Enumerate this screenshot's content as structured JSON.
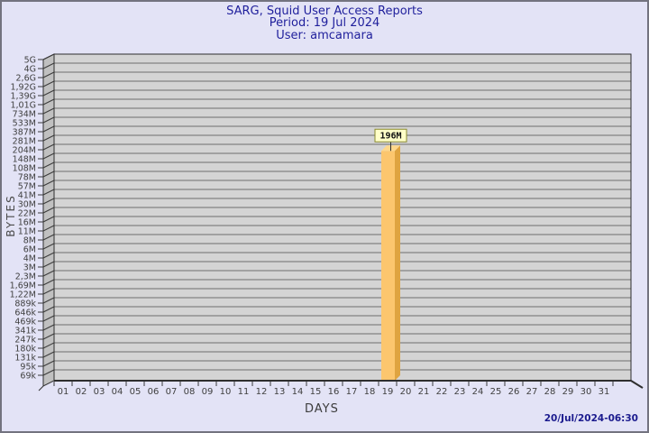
{
  "header": {
    "title": "SARG, Squid User Access Reports",
    "period": "Period: 19 Jul 2024",
    "user": "User: amcamara"
  },
  "footer": {
    "timestamp": "20/Jul/2024-06:30"
  },
  "window_colors": {
    "background": "#e3e3f6",
    "border": "#73737f",
    "title_text": "#1f1f9c",
    "timestamp_text": "#1b1b8e"
  },
  "chart_data": {
    "type": "bar",
    "title": "SARG, Squid User Access Reports",
    "period": "19 Jul 2024",
    "user": "amcamara",
    "xlabel": "DAYS",
    "ylabel": "BYTES",
    "y_scale": "log",
    "grid": true,
    "legend": null,
    "x_categories": [
      "01",
      "02",
      "03",
      "04",
      "05",
      "06",
      "07",
      "08",
      "09",
      "10",
      "11",
      "12",
      "13",
      "14",
      "15",
      "16",
      "17",
      "18",
      "19",
      "20",
      "21",
      "22",
      "23",
      "24",
      "25",
      "26",
      "27",
      "28",
      "29",
      "30",
      "31"
    ],
    "y_tick_labels": [
      "5G",
      "4G",
      "2,6G",
      "1,92G",
      "1,39G",
      "1,01G",
      "734M",
      "533M",
      "387M",
      "281M",
      "204M",
      "148M",
      "108M",
      "78M",
      "57M",
      "41M",
      "30M",
      "22M",
      "16M",
      "11M",
      "8M",
      "6M",
      "4M",
      "3M",
      "2,3M",
      "1,69M",
      "1,22M",
      "889k",
      "646k",
      "469k",
      "341k",
      "247k",
      "180k",
      "131k",
      "95k",
      "69k"
    ],
    "bars": [
      {
        "day": "19",
        "value_label": "196M"
      }
    ],
    "bar_colors": {
      "front": "#fcc66e",
      "side": "#dfa440",
      "top": "#ffd88c"
    },
    "annotation_box": {
      "bg": "#ffffc8",
      "border": "#8b8b2f",
      "text": "#101010"
    },
    "plot": {
      "bg": "#d4d4d4",
      "grid": "#6e6e6e",
      "wall": "#c0c0c0",
      "frame": "#2e2e2e",
      "tick": "#3a3a3a",
      "tick_text": "#404040"
    }
  }
}
